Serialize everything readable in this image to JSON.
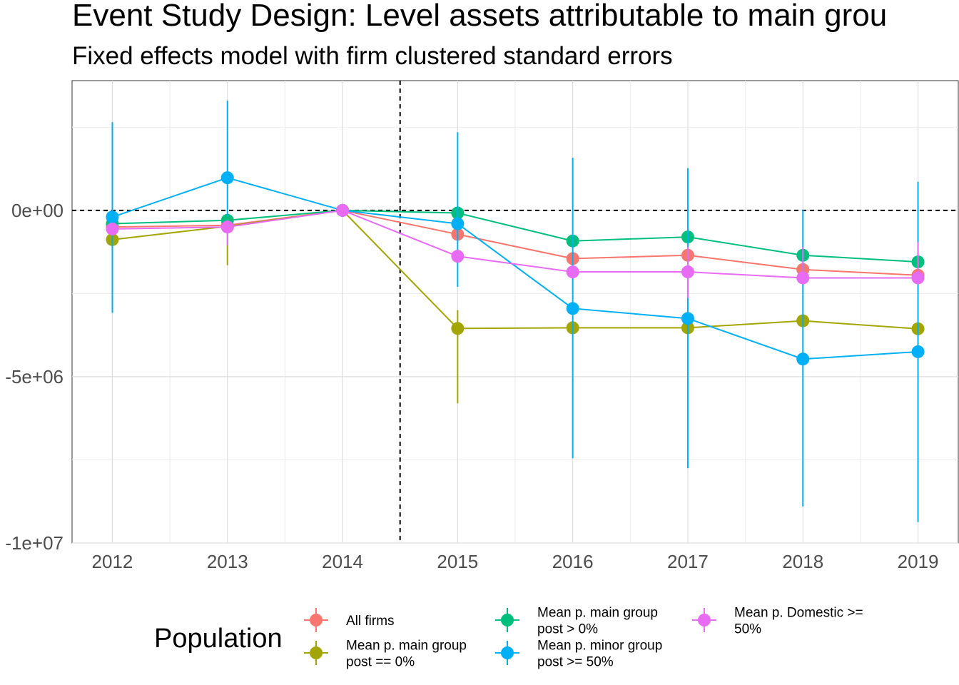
{
  "chart_data": {
    "type": "line",
    "title": "Event Study Design: Level assets attributable to main grou",
    "subtitle": "Fixed effects model with firm clustered standard errors",
    "xlabel": "",
    "ylabel": "",
    "x": [
      2012,
      2013,
      2014,
      2015,
      2016,
      2017,
      2018,
      2019
    ],
    "x_tick_labels": [
      "2012",
      "2013",
      "2014",
      "2015",
      "2016",
      "2017",
      "2018",
      "2019"
    ],
    "xlim": [
      2011.65,
      2019.35
    ],
    "ylim": [
      -10000000,
      3900000
    ],
    "y_ticks": [
      0,
      -5000000,
      -10000000
    ],
    "y_tick_labels": [
      "0e+00",
      "-5e+06",
      "-1e+07"
    ],
    "grid": true,
    "reference_lines": {
      "vertical_x": 2014.5,
      "horizontal_y": 0
    },
    "legend": {
      "title": "Population",
      "placement": "bottom"
    },
    "series": [
      {
        "name": "All firms",
        "color": "#F8766D",
        "values": [
          -500000,
          -450000,
          0,
          -720000,
          -1450000,
          -1350000,
          -1780000,
          -1950000
        ],
        "lower": [
          -560000,
          -520000,
          0,
          -780000,
          -1520000,
          -1420000,
          -1860000,
          -2030000
        ],
        "upper": [
          -440000,
          -380000,
          0,
          -660000,
          -1380000,
          -1280000,
          -1700000,
          -1870000
        ]
      },
      {
        "name": "Mean p. main group post == 0%",
        "color": "#A3A500",
        "values": [
          -880000,
          -480000,
          0,
          -3550000,
          -3530000,
          -3530000,
          -3320000,
          -3560000
        ],
        "lower": [
          -1000000,
          -1650000,
          0,
          -5800000,
          -3600000,
          -3600000,
          -3400000,
          -3640000
        ],
        "upper": [
          -760000,
          -480000,
          0,
          -3000000,
          -3460000,
          -3460000,
          -3240000,
          -3480000
        ]
      },
      {
        "name": "Mean p. main group post > 0%",
        "color": "#00BF7D",
        "values": [
          -400000,
          -300000,
          0,
          -80000,
          -920000,
          -800000,
          -1350000,
          -1550000
        ],
        "lower": [
          -460000,
          -360000,
          0,
          -140000,
          -990000,
          -870000,
          -1430000,
          -1630000
        ],
        "upper": [
          -340000,
          -240000,
          0,
          -20000,
          -850000,
          -730000,
          -1270000,
          -1470000
        ]
      },
      {
        "name": "Mean p. minor group post >= 50%",
        "color": "#00B0F6",
        "values": [
          -200000,
          980000,
          0,
          -400000,
          -2950000,
          -3250000,
          -4470000,
          -4250000
        ],
        "lower": [
          -3080000,
          -180000,
          0,
          -2300000,
          -7450000,
          -7750000,
          -8900000,
          -9370000
        ],
        "upper": [
          2650000,
          3300000,
          0,
          2350000,
          1580000,
          1270000,
          20000,
          860000
        ]
      },
      {
        "name": "Mean p. Domestic >= 50%",
        "color": "#E76BF3",
        "values": [
          -560000,
          -500000,
          0,
          -1380000,
          -1850000,
          -1850000,
          -2030000,
          -2030000
        ],
        "lower": [
          -640000,
          -1050000,
          0,
          -1500000,
          -1930000,
          -2640000,
          -2110000,
          -2110000
        ],
        "upper": [
          -480000,
          -300000,
          0,
          -1260000,
          -1770000,
          -1100000,
          -1100000,
          -950000
        ]
      }
    ]
  }
}
